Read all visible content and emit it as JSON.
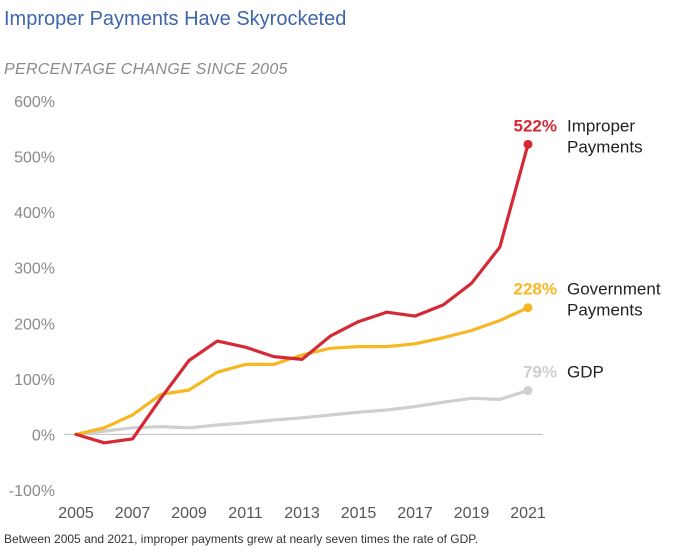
{
  "chart_data": {
    "type": "line",
    "title": "Improper Payments Have Skyrocketed",
    "subtitle": "PERCENTAGE CHANGE SINCE 2005",
    "footnote": "Between 2005 and 2021, improper payments grew at nearly seven times the rate of GDP.",
    "x": [
      2005,
      2006,
      2007,
      2008,
      2009,
      2010,
      2011,
      2012,
      2013,
      2014,
      2015,
      2016,
      2017,
      2018,
      2019,
      2020,
      2021
    ],
    "x_tick_labels": [
      "2005",
      "2007",
      "2009",
      "2011",
      "2013",
      "2015",
      "2017",
      "2019",
      "2021"
    ],
    "x_tick_values": [
      2005,
      2007,
      2009,
      2011,
      2013,
      2015,
      2017,
      2019,
      2021
    ],
    "y_tick_labels": [
      "600%",
      "500%",
      "400%",
      "300%",
      "200%",
      "100%",
      "0%",
      "-100%"
    ],
    "y_tick_values": [
      600,
      500,
      400,
      300,
      200,
      100,
      0,
      -100
    ],
    "xlim": [
      2005,
      2021
    ],
    "ylim": [
      -100,
      600
    ],
    "grid": false,
    "series": [
      {
        "name": "Improper Payments",
        "name_lines": [
          "Improper",
          "Payments"
        ],
        "end_label": "522%",
        "color": "#d42a36",
        "values": [
          0,
          -15,
          -8,
          65,
          133,
          168,
          157,
          140,
          135,
          177,
          203,
          220,
          213,
          233,
          272,
          337,
          522
        ]
      },
      {
        "name": "Government Payments",
        "name_lines": [
          "Government",
          "Payments"
        ],
        "end_label": "228%",
        "color": "#f7b723",
        "values": [
          0,
          12,
          35,
          72,
          80,
          112,
          126,
          126,
          143,
          155,
          158,
          158,
          163,
          174,
          187,
          205,
          228
        ]
      },
      {
        "name": "GDP",
        "name_lines": [
          "GDP"
        ],
        "end_label": "79%",
        "color": "#cfcfcf",
        "values": [
          0,
          6,
          12,
          14,
          12,
          17,
          21,
          26,
          30,
          35,
          40,
          44,
          50,
          58,
          65,
          63,
          79
        ]
      }
    ]
  }
}
